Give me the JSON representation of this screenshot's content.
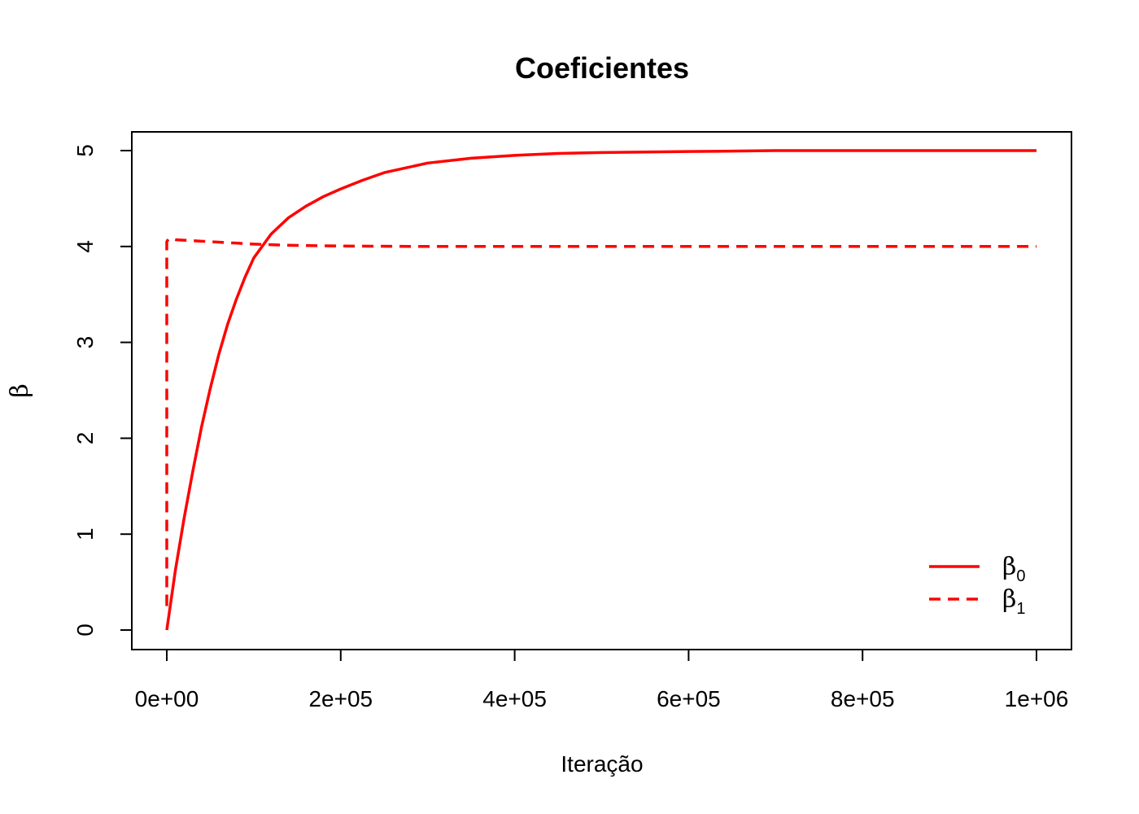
{
  "chart_data": {
    "type": "line",
    "title": "Coeficientes",
    "xlabel": "Iteração",
    "ylabel": "β",
    "xlim": [
      0,
      1000000
    ],
    "ylim": [
      0,
      5
    ],
    "x_ticks": [
      0,
      200000,
      400000,
      600000,
      800000,
      1000000
    ],
    "x_tick_labels": [
      "0e+00",
      "2e+05",
      "4e+05",
      "6e+05",
      "8e+05",
      "1e+06"
    ],
    "y_ticks": [
      0,
      1,
      2,
      3,
      4,
      5
    ],
    "y_tick_labels": [
      "0",
      "1",
      "2",
      "3",
      "4",
      "5"
    ],
    "grid": false,
    "legend_position": "bottom-right",
    "color": "#ff0000",
    "series": [
      {
        "name": "β0",
        "legend_symbol": "β",
        "legend_sub": "0",
        "line_style": "solid",
        "x": [
          0,
          10000,
          20000,
          30000,
          40000,
          50000,
          60000,
          70000,
          80000,
          90000,
          100000,
          120000,
          140000,
          160000,
          180000,
          200000,
          225000,
          250000,
          275000,
          300000,
          350000,
          400000,
          450000,
          500000,
          600000,
          700000,
          800000,
          900000,
          1000000
        ],
        "y": [
          0,
          0.63,
          1.17,
          1.66,
          2.12,
          2.52,
          2.88,
          3.19,
          3.45,
          3.68,
          3.88,
          4.13,
          4.3,
          4.42,
          4.52,
          4.6,
          4.69,
          4.77,
          4.82,
          4.87,
          4.92,
          4.95,
          4.97,
          4.98,
          4.99,
          5.0,
          5.0,
          5.0,
          5.0
        ]
      },
      {
        "name": "β1",
        "legend_symbol": "β",
        "legend_sub": "1",
        "line_style": "dashed",
        "x": [
          0,
          0,
          2000,
          5000,
          10000,
          20000,
          40000,
          60000,
          80000,
          100000,
          130000,
          160000,
          200000,
          250000,
          300000,
          400000,
          600000,
          800000,
          1000000
        ],
        "y": [
          0.25,
          4.05,
          4.08,
          4.08,
          4.07,
          4.065,
          4.055,
          4.045,
          4.035,
          4.025,
          4.015,
          4.01,
          4.005,
          4.002,
          4.0,
          4.0,
          4.0,
          4.0,
          4.0
        ]
      }
    ]
  }
}
